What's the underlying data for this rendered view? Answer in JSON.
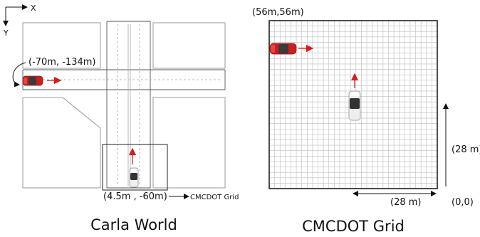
{
  "axes": {
    "x_label": "X",
    "y_label": "Y"
  },
  "carla": {
    "start_coord": "(-70m, -134m)",
    "grid_coord": "(4.5m , -60m)",
    "grid_callout": "CMCDOT Grid",
    "title": "Carla World"
  },
  "cmcdot": {
    "top_left_coord": "(56m,56m)",
    "height_label": "(28 m)",
    "width_label": "(28 m)",
    "origin_label": "(0,0)",
    "title": "CMCDOT Grid",
    "grid_cells": 31
  },
  "colors": {
    "red_car": "#cc1f1f",
    "arrow": "#d81b1b",
    "white_car": "#eeeeee",
    "grid_line": "#bdbdbd"
  }
}
